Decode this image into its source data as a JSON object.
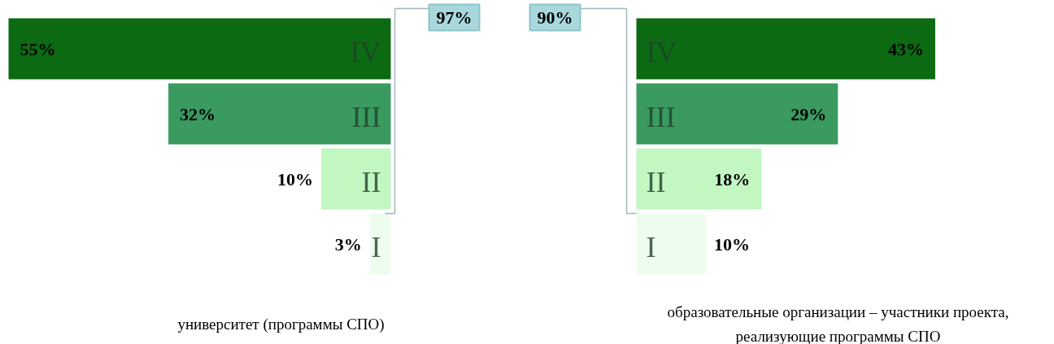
{
  "chart_data": [
    {
      "type": "bar",
      "orientation": "horizontal",
      "xlabel": "университет (программы СПО)",
      "categories": [
        "IV",
        "III",
        "II",
        "I"
      ],
      "values": [
        55,
        32,
        10,
        3
      ],
      "value_labels": [
        "55%",
        "32%",
        "10%",
        "3%"
      ],
      "colors": [
        "#0b6a12",
        "#3a9a60",
        "#c2f7c2",
        "#eefcee"
      ],
      "annotations": [
        "97%"
      ]
    },
    {
      "type": "bar",
      "orientation": "horizontal",
      "xlabel": "образовательные организации – участники проекта, реализующие программы СПО",
      "categories": [
        "IV",
        "III",
        "II",
        "I"
      ],
      "values": [
        43,
        29,
        18,
        10
      ],
      "value_labels": [
        "43%",
        "29%",
        "18%",
        "10%"
      ],
      "colors": [
        "#0b6a12",
        "#3a9a60",
        "#c2f7c2",
        "#eefcee"
      ],
      "annotations": [
        "90%"
      ]
    }
  ]
}
